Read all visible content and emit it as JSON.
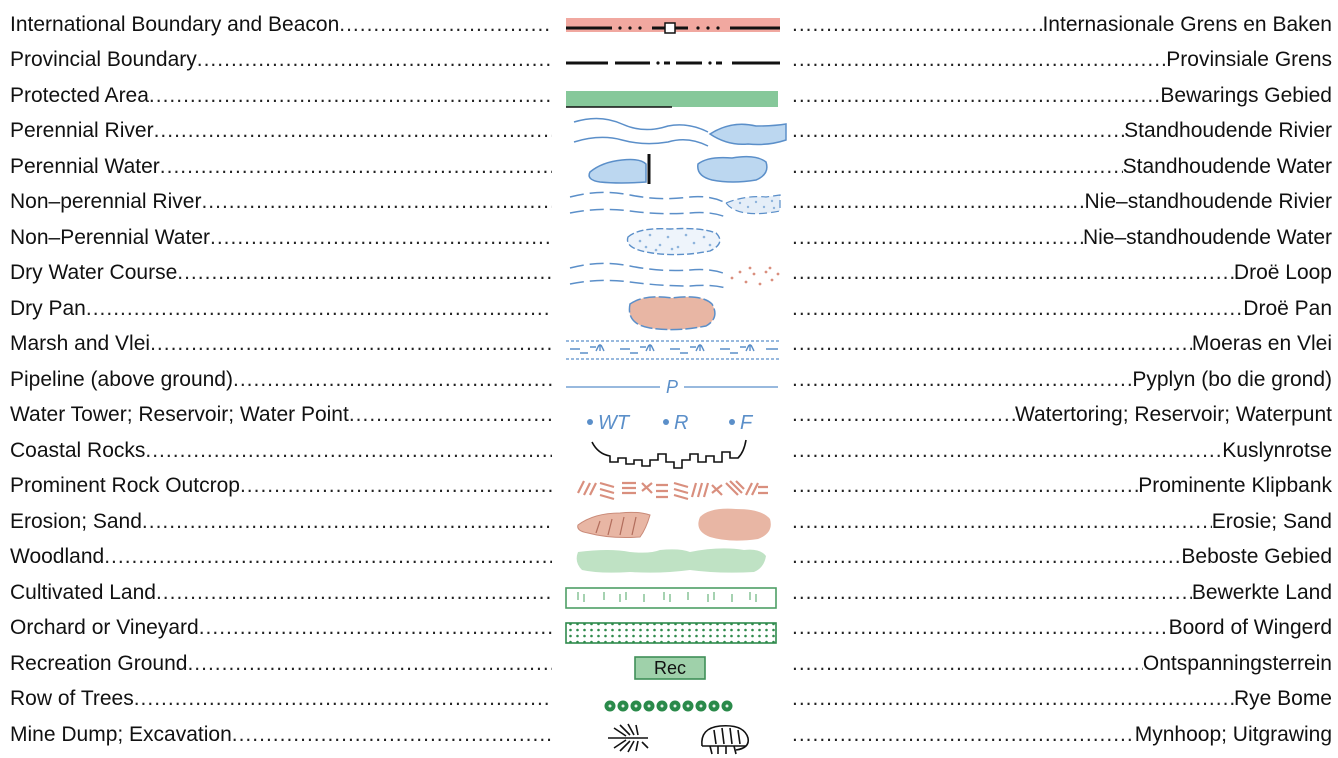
{
  "legend": {
    "rows": [
      {
        "en": "International Boundary and Beacon",
        "af": "Internasionale Grens en Baken",
        "symbol": "boundary-beacon"
      },
      {
        "en": "Provincial Boundary",
        "af": "Provinsiale Grens",
        "symbol": "provincial-boundary"
      },
      {
        "en": "Protected Area",
        "af": "Bewarings Gebied",
        "symbol": "protected-area"
      },
      {
        "en": "Perennial River",
        "af": "Standhoudende Rivier",
        "symbol": "perennial-river"
      },
      {
        "en": "Perennial Water",
        "af": "Standhoudende Water",
        "symbol": "perennial-water"
      },
      {
        "en": "Non–perennial River",
        "af": "Nie–standhoudende Rivier",
        "symbol": "non-perennial-river"
      },
      {
        "en": "Non–Perennial Water",
        "af": "Nie–standhoudende Water",
        "symbol": "non-perennial-water"
      },
      {
        "en": "Dry Water Course ",
        "af": "Droë Loop",
        "symbol": "dry-water-course"
      },
      {
        "en": "Dry Pan",
        "af": " Droë Pan",
        "symbol": "dry-pan"
      },
      {
        "en": "Marsh and Vlei",
        "af": " Moeras en Vlei",
        "symbol": "marsh"
      },
      {
        "en": "Pipeline (above ground)",
        "af": "Pyplyn (bo die grond)",
        "symbol": "pipeline"
      },
      {
        "en": "Water Tower; Reservoir; Water Point",
        "af": "Watertoring; Reservoir; Waterpunt",
        "symbol": "water-tower"
      },
      {
        "en": "Coastal Rocks",
        "af": " Kuslynrotse",
        "symbol": "coastal-rocks"
      },
      {
        "en": "Prominent Rock Outcrop",
        "af": "Prominente Klipbank",
        "symbol": "rock-outcrop"
      },
      {
        "en": "Erosion; Sand",
        "af": " Erosie; Sand",
        "symbol": "erosion-sand"
      },
      {
        "en": "Woodland ",
        "af": "Beboste Gebied",
        "symbol": "woodland"
      },
      {
        "en": "Cultivated Land",
        "af": " Bewerkte Land",
        "symbol": "cultivated-land"
      },
      {
        "en": "Orchard or Vineyard ",
        "af": "Boord of Wingerd",
        "symbol": "orchard"
      },
      {
        "en": "Recreation Ground",
        "af": "Ontspanningsterrein",
        "symbol": "recreation"
      },
      {
        "en": "Row of Trees",
        "af": " Rye Bome",
        "symbol": "row-of-trees"
      },
      {
        "en": "Mine Dump; Excavation ",
        "af": "   Mynhoop; Uitgrawing",
        "symbol": "mine-dump"
      }
    ],
    "symbol_text": {
      "pipeline": "P",
      "water_tower": "WT",
      "reservoir": "R",
      "water_point": "F",
      "recreation": "Rec"
    },
    "colors": {
      "water_line": "#5b8fc9",
      "water_fill": "#bcd7f0",
      "boundary_pink": "#f1a8a0",
      "protected_green": "#86c89a",
      "sand": "#e8b6a4",
      "rock": "#d98f7e",
      "woodland": "#bfe2c4",
      "cultivated": "#4e9e66",
      "orchard": "#2f8a4c",
      "trees": "#2a8a4a"
    }
  }
}
